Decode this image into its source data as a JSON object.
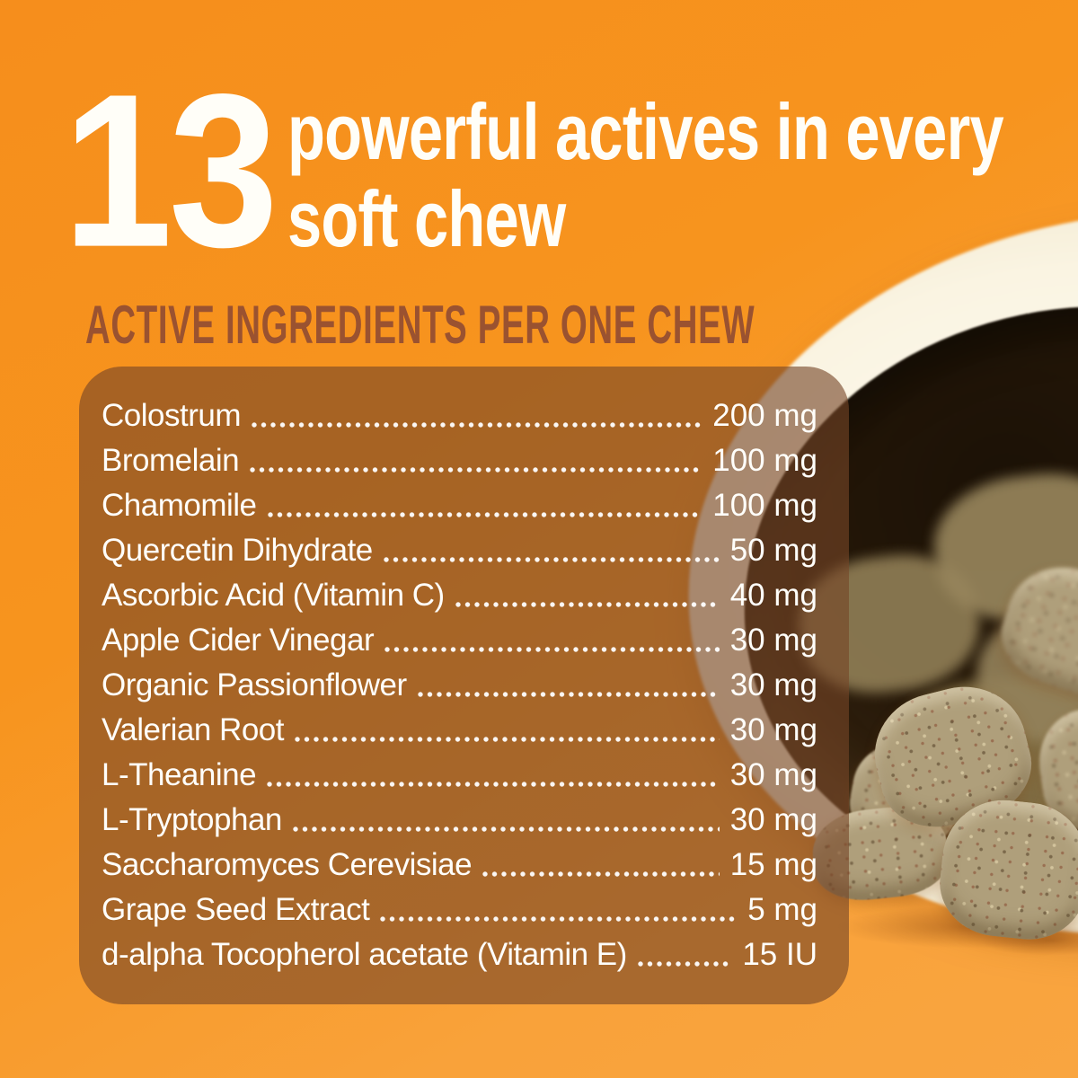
{
  "header": {
    "big_number": "13",
    "title_line1": "powerful actives in every",
    "title_line2": "soft chew",
    "subtitle": "ACTIVE INGREDIENTS PER ONE CHEW"
  },
  "ingredients": [
    {
      "name": "Colostrum",
      "value": "200 mg"
    },
    {
      "name": "Bromelain",
      "value": "100 mg"
    },
    {
      "name": "Chamomile",
      "value": "100 mg"
    },
    {
      "name": "Quercetin Dihydrate",
      "value": "50 mg"
    },
    {
      "name": "Ascorbic Acid (Vitamin C)",
      "value": "40 mg"
    },
    {
      "name": "Apple Cider Vinegar",
      "value": "30 mg"
    },
    {
      "name": "Organic Passionflower",
      "value": "30 mg"
    },
    {
      "name": "Valerian Root",
      "value": "30 mg"
    },
    {
      "name": "L-Theanine",
      "value": "30 mg"
    },
    {
      "name": "L-Tryptophan",
      "value": "30 mg"
    },
    {
      "name": "Saccharomyces Cerevisiae",
      "value": "15 mg"
    },
    {
      "name": "Grape Seed Extract",
      "value": "5 mg"
    },
    {
      "name": "d-alpha Tocopherol acetate (Vitamin E)",
      "value": "15 IU"
    }
  ],
  "colors": {
    "background_orange": "#F7941E",
    "panel_brown": "#764626",
    "headline_white": "#FFFEF8",
    "subtitle_brown": "#9A5230",
    "chew_tan": "#AF9F7B"
  },
  "decor": {
    "bottle": "white-supplement-bottle-tipped-over",
    "chews": "tan-soft-chews-spilling-out"
  }
}
